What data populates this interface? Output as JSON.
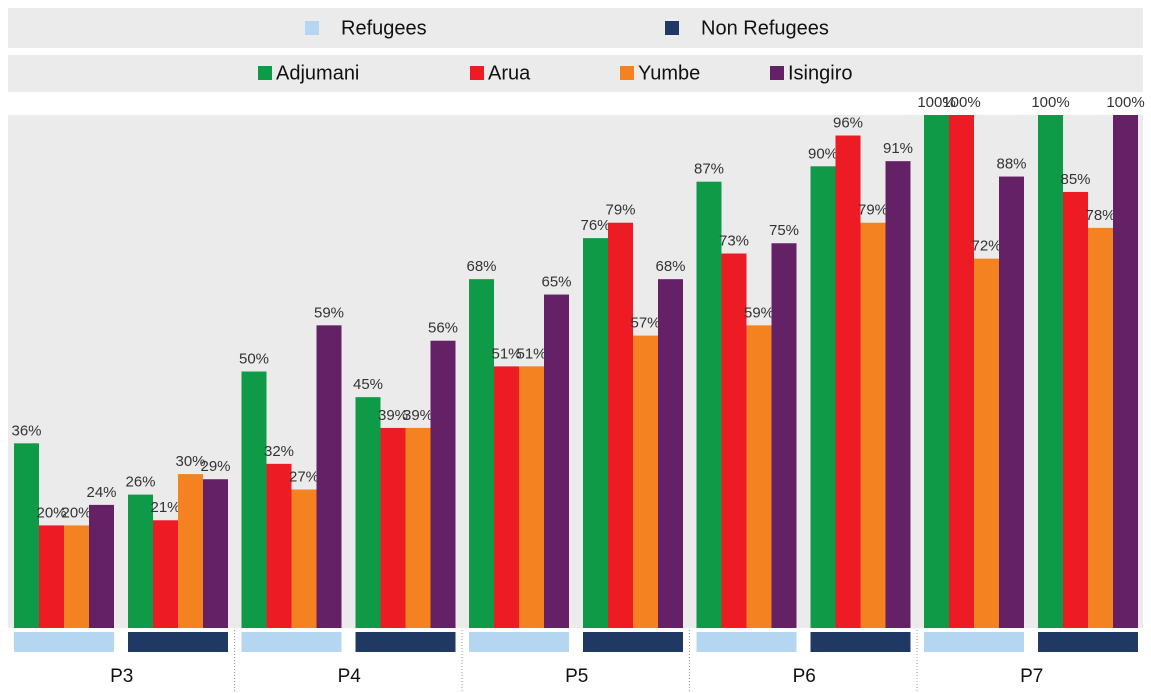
{
  "chart_data": {
    "type": "bar",
    "categories": [
      "P3",
      "P4",
      "P5",
      "P6",
      "P7"
    ],
    "groups": [
      {
        "name": "Refugees",
        "color": "#b4d6f0"
      },
      {
        "name": "Non Refugees",
        "color": "#1f3864"
      }
    ],
    "series": [
      {
        "name": "Adjumani",
        "color": "#0f9a48",
        "values": [
          [
            36,
            26
          ],
          [
            50,
            45
          ],
          [
            68,
            76
          ],
          [
            87,
            90
          ],
          [
            100,
            100
          ]
        ],
        "value_labels": [
          [
            "36%",
            "26%"
          ],
          [
            "50%",
            "45%"
          ],
          [
            "68%",
            "76%"
          ],
          [
            "87%",
            "90%"
          ],
          [
            "100%",
            "100%"
          ]
        ]
      },
      {
        "name": "Arua",
        "color": "#ed1c24",
        "values": [
          [
            20,
            21
          ],
          [
            32,
            39
          ],
          [
            51,
            79
          ],
          [
            73,
            96
          ],
          [
            100,
            85
          ]
        ],
        "value_labels": [
          [
            "20%",
            "21%"
          ],
          [
            "32%",
            "39%"
          ],
          [
            "51%",
            "79%"
          ],
          [
            "73%",
            "96%"
          ],
          [
            "100%",
            "85%"
          ]
        ]
      },
      {
        "name": "Yumbe",
        "color": "#f58220",
        "values": [
          [
            20,
            30
          ],
          [
            27,
            39
          ],
          [
            51,
            57
          ],
          [
            59,
            79
          ],
          [
            72,
            78
          ]
        ],
        "value_labels": [
          [
            "20%",
            "30%"
          ],
          [
            "27%",
            "39%"
          ],
          [
            "51%",
            "57%"
          ],
          [
            "59%",
            "79%"
          ],
          [
            "72%",
            "78%"
          ]
        ]
      },
      {
        "name": "Isingiro",
        "color": "#652166",
        "values": [
          [
            24,
            29
          ],
          [
            59,
            56
          ],
          [
            65,
            68
          ],
          [
            75,
            91
          ],
          [
            88,
            100
          ]
        ],
        "value_labels": [
          [
            "24%",
            "29%"
          ],
          [
            "59%",
            "56%"
          ],
          [
            "65%",
            "68%"
          ],
          [
            "75%",
            "91%"
          ],
          [
            "88%",
            "100%"
          ]
        ]
      }
    ],
    "ylim": [
      0,
      100
    ]
  }
}
